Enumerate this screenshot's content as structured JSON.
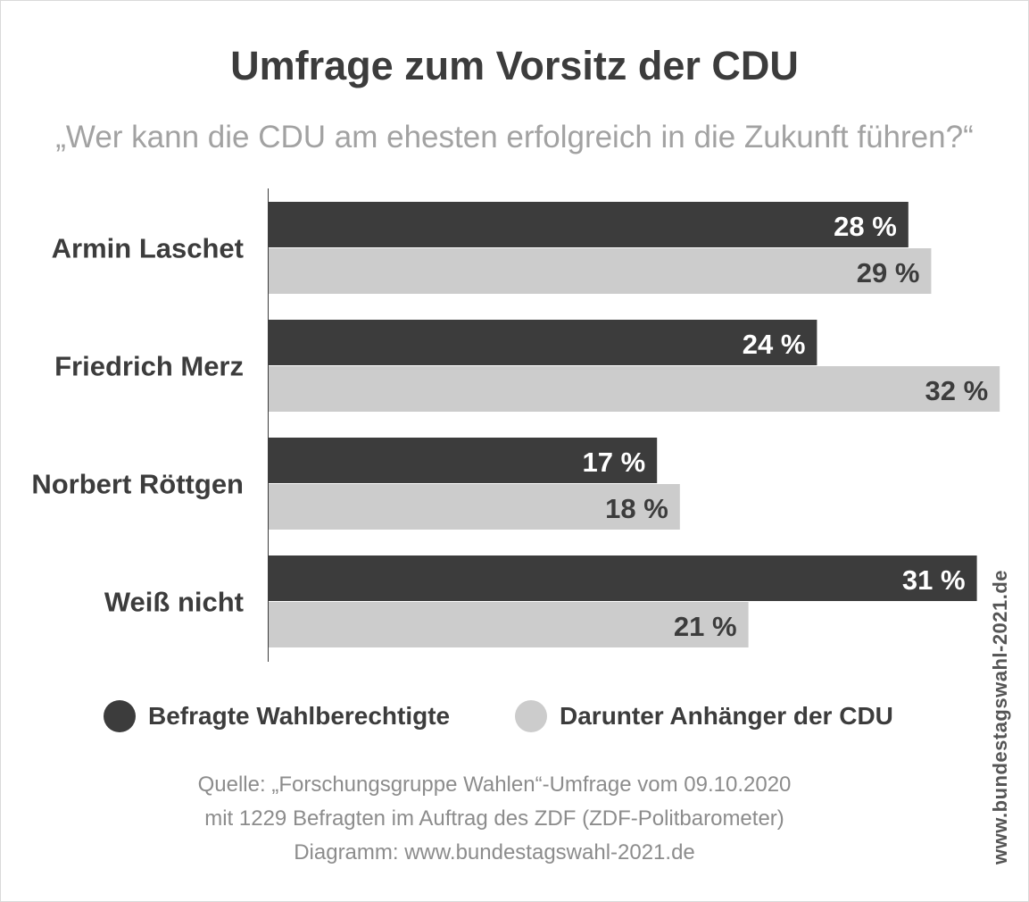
{
  "title": "Umfrage zum Vorsitz der CDU",
  "subtitle": "„Wer kann die CDU am ehesten erfolgreich in die Zukunft führen?“",
  "chart_data": {
    "type": "bar",
    "orientation": "horizontal",
    "categories": [
      "Armin Laschet",
      "Friedrich Merz",
      "Norbert Röttgen",
      "Weiß nicht"
    ],
    "series": [
      {
        "name": "Befragte Wahlberechtigte",
        "values": [
          28,
          24,
          17,
          31
        ],
        "color": "#3c3c3c"
      },
      {
        "name": "Darunter Anhänger der CDU",
        "values": [
          29,
          32,
          18,
          21
        ],
        "color": "#cccccc"
      }
    ],
    "value_suffix": " %",
    "xlim": [
      0,
      32
    ],
    "grid": false,
    "legend_position": "bottom"
  },
  "legend": [
    {
      "label": "Befragte Wahlberechtigte",
      "color": "#3c3c3c"
    },
    {
      "label": "Darunter Anhänger der CDU",
      "color": "#cccccc"
    }
  ],
  "source": {
    "line1": "Quelle: „Forschungsgruppe Wahlen“-Umfrage vom 09.10.2020",
    "line2": "mit 1229 Befragten im Auftrag des ZDF (ZDF-Politbarometer)",
    "line3": "Diagramm: www.bundestagswahl-2021.de"
  },
  "watermark": "www.bundestagswahl-2021.de",
  "colors": {
    "dark_bar": "#3c3c3c",
    "light_bar": "#cccccc",
    "dark_text": "#3c3c3c",
    "subtitle": "#a2a2a2",
    "source_text": "#8c8c8c"
  }
}
